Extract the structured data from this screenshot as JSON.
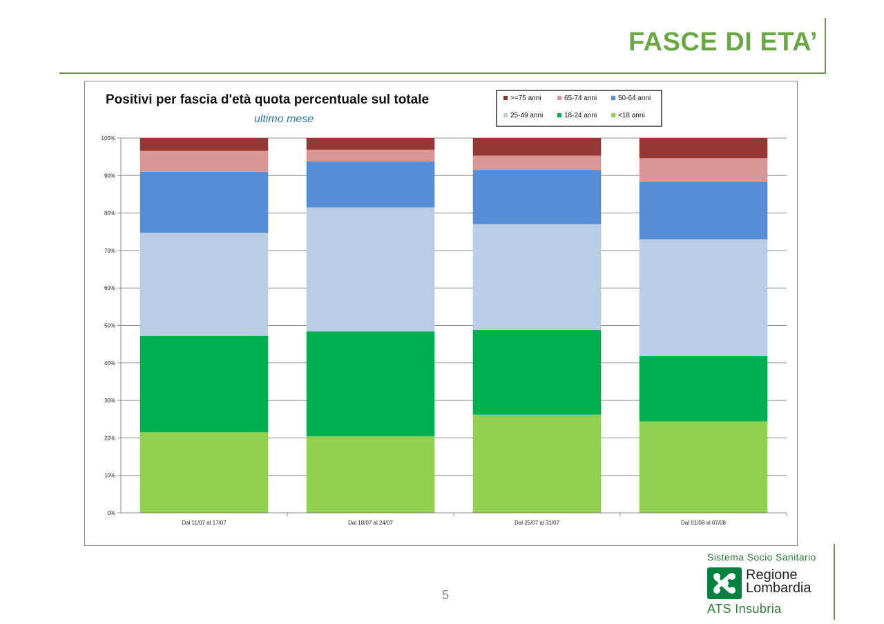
{
  "slide": {
    "title": "FASCE DI ETA’",
    "page_number": "5"
  },
  "branding": {
    "system": "Sistema Socio Sanitario",
    "region_line1": "Regione",
    "region_line2": "Lombardia",
    "ats": "ATS Insubria",
    "logo_color": "#00823f"
  },
  "chart_data": {
    "type": "bar",
    "stacked": true,
    "title": "Positivi per fascia d'età quota percentuale sul totale",
    "subtitle": "ultimo mese",
    "categories": [
      "Dal 11/07 al 17/07",
      "Dal 18/07 al 24/07",
      "Dal 25/07 al 31/07",
      "Dal 01/08 al 07/08"
    ],
    "ylim": [
      0,
      100
    ],
    "yticks": [
      "0%",
      "10%",
      "20%",
      "30%",
      "40%",
      "50%",
      "60%",
      "70%",
      "80%",
      "90%",
      "100%"
    ],
    "grid": true,
    "legend_position": "top-right",
    "series": [
      {
        "name": "<18 anni",
        "color": "#92d050",
        "values": [
          21.5,
          20.4,
          26.2,
          24.4
        ]
      },
      {
        "name": "18-24 anni",
        "color": "#00b050",
        "values": [
          25.7,
          28.0,
          22.6,
          17.4
        ]
      },
      {
        "name": "25-49 anni",
        "color": "#b9cde5",
        "values": [
          27.5,
          33.1,
          28.2,
          31.2
        ]
      },
      {
        "name": "50-64 anni",
        "color": "#558ed5",
        "values": [
          16.3,
          12.3,
          14.5,
          15.3
        ]
      },
      {
        "name": "65-74 anni",
        "color": "#d99694",
        "values": [
          5.6,
          3.1,
          3.8,
          6.3
        ]
      },
      {
        "name": ">=75 anni",
        "color": "#953735",
        "values": [
          3.4,
          3.1,
          4.7,
          5.4
        ]
      }
    ],
    "legend_order": [
      ">=75 anni",
      "65-74 anni",
      "50-64 anni",
      "25-49 anni",
      "18-24 anni",
      "<18 anni"
    ]
  }
}
